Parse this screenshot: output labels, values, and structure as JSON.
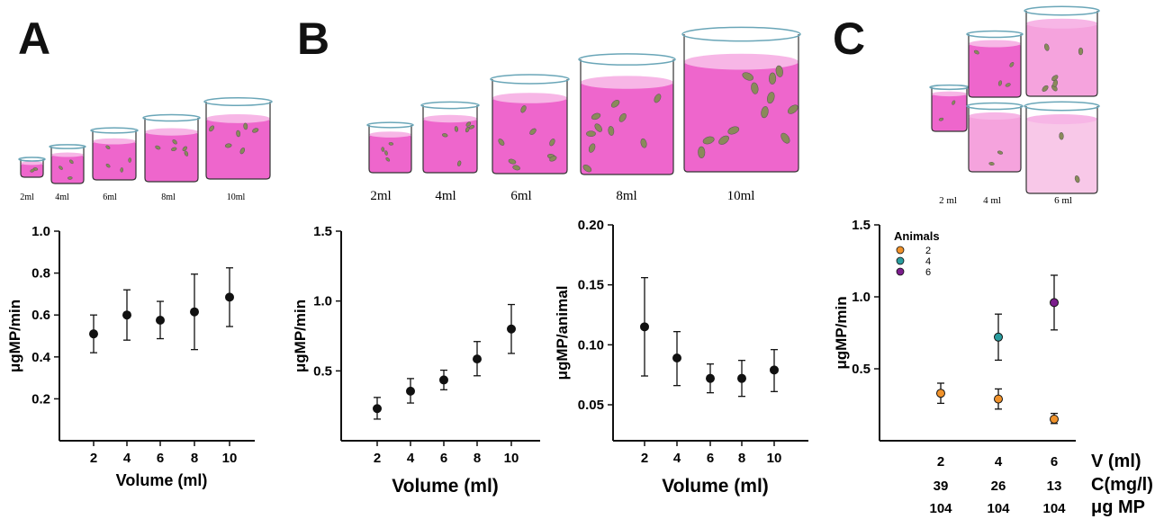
{
  "panel_labels": [
    "A",
    "B",
    "C"
  ],
  "beaker_labels": {
    "A": [
      "2ml",
      "4ml",
      "6ml",
      "8ml",
      "10ml"
    ],
    "B": [
      "2ml",
      "4ml",
      "6ml",
      "8ml",
      "10ml"
    ],
    "C": [
      "2 ml",
      "4 ml",
      "6 ml"
    ]
  },
  "colors": {
    "liquid": "#ee66cc",
    "liquid_light": "#f5a3dd",
    "liquid_lighter": "#f8c8e8",
    "glass": "#6aa6b8",
    "animals_2": "#f0922b",
    "animals_4": "#2a9d9f",
    "animals_6": "#7b1d8c"
  },
  "chart_data": [
    {
      "id": "A",
      "type": "scatter",
      "x": [
        2,
        4,
        6,
        8,
        10
      ],
      "y": [
        0.51,
        0.6,
        0.575,
        0.615,
        0.685
      ],
      "err_low": [
        0.42,
        0.48,
        0.487,
        0.435,
        0.545
      ],
      "err_high": [
        0.6,
        0.72,
        0.665,
        0.795,
        0.825
      ],
      "xlabel": "Volume (ml)",
      "ylabel": "μgMP/min",
      "xticks": [
        "2",
        "4",
        "6",
        "8",
        "10"
      ],
      "yticks": [
        "0.2",
        "0.4",
        "0.6",
        "0.8",
        "1.0"
      ],
      "ylim": [
        0,
        1.0
      ]
    },
    {
      "id": "B1",
      "type": "scatter",
      "x": [
        2,
        4,
        6,
        8,
        10
      ],
      "y": [
        0.23,
        0.355,
        0.435,
        0.585,
        0.8
      ],
      "err_low": [
        0.155,
        0.27,
        0.365,
        0.465,
        0.625
      ],
      "err_high": [
        0.31,
        0.445,
        0.505,
        0.71,
        0.975
      ],
      "xlabel": "Volume (ml)",
      "ylabel": "μgMP/min",
      "xticks": [
        "2",
        "4",
        "6",
        "8",
        "10"
      ],
      "yticks": [
        "0.5",
        "1.0",
        "1.5"
      ],
      "ylim": [
        0,
        1.5
      ]
    },
    {
      "id": "B2",
      "type": "scatter",
      "x": [
        2,
        4,
        6,
        8,
        10
      ],
      "y": [
        0.115,
        0.089,
        0.072,
        0.072,
        0.079
      ],
      "err_low": [
        0.074,
        0.066,
        0.06,
        0.057,
        0.061
      ],
      "err_high": [
        0.156,
        0.111,
        0.084,
        0.087,
        0.096
      ],
      "xlabel": "Volume (ml)",
      "ylabel": "μgMP/animal",
      "xticks": [
        "2",
        "4",
        "6",
        "8",
        "10"
      ],
      "yticks": [
        "0.05",
        "0.10",
        "0.15",
        "0.20"
      ],
      "ylim": [
        0.02,
        0.2
      ]
    },
    {
      "id": "C",
      "type": "scatter",
      "categories": [
        "2",
        "4",
        "6"
      ],
      "xlabel": "V (ml)",
      "row2_label": "C(mg/l)",
      "row2": [
        "39",
        "26",
        "13"
      ],
      "row3_label": "μg MP",
      "row3": [
        "104",
        "104",
        "104"
      ],
      "ylabel": "μgMP/min",
      "yticks": [
        "0.5",
        "1.0",
        "1.5"
      ],
      "ylim": [
        0,
        1.5
      ],
      "legend_title": "Animals",
      "legend_placement": "top-left",
      "series": [
        {
          "name": "2",
          "color": "#f0922b",
          "values": [
            0.33,
            0.29,
            0.15
          ],
          "err_low": [
            0.26,
            0.22,
            0.12
          ],
          "err_high": [
            0.4,
            0.36,
            0.19
          ]
        },
        {
          "name": "4",
          "color": "#2a9d9f",
          "values": [
            null,
            0.72,
            null
          ],
          "err_low": [
            null,
            0.56,
            null
          ],
          "err_high": [
            null,
            0.88,
            null
          ]
        },
        {
          "name": "6",
          "color": "#7b1d8c",
          "values": [
            null,
            null,
            0.96
          ],
          "err_low": [
            null,
            null,
            0.77
          ],
          "err_high": [
            null,
            null,
            1.15
          ]
        }
      ]
    }
  ]
}
